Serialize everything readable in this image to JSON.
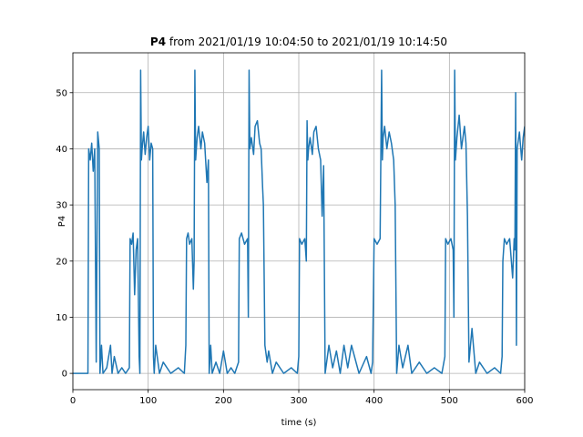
{
  "chart_data": {
    "type": "line",
    "title": {
      "bold": "P4",
      "text": "from 2021/01/19 10:04:50 to 2021/01/19 10:14:50"
    },
    "xlabel": "time (s)",
    "ylabel": "P4",
    "xlim": [
      0,
      600
    ],
    "xticks": [
      0,
      100,
      200,
      300,
      400,
      500,
      600
    ],
    "ylim": [
      -2.9,
      57.1
    ],
    "yticks": [
      0,
      10,
      20,
      30,
      40,
      50
    ],
    "grid": true,
    "series": [
      {
        "color": "#1f77b4",
        "x": [
          0,
          20,
          21,
          23,
          25,
          27,
          29,
          31,
          33,
          35,
          36,
          38,
          40,
          45,
          50,
          52,
          55,
          60,
          65,
          70,
          75,
          76,
          78,
          80,
          82,
          84,
          86,
          88,
          89,
          90,
          91,
          92,
          94,
          96,
          98,
          100,
          102,
          104,
          106,
          107,
          108,
          110,
          115,
          120,
          130,
          140,
          148,
          150,
          151,
          153,
          155,
          158,
          160,
          161,
          162,
          163,
          165,
          167,
          170,
          172,
          175,
          178,
          180,
          181,
          183,
          185,
          190,
          195,
          200,
          205,
          210,
          215,
          220,
          221,
          224,
          228,
          232,
          233,
          234,
          235,
          237,
          240,
          242,
          245,
          248,
          250,
          252,
          253,
          255,
          258,
          260,
          265,
          270,
          280,
          290,
          298,
          300,
          301,
          304,
          308,
          310,
          311,
          312,
          313,
          315,
          318,
          320,
          323,
          326,
          329,
          331,
          333,
          335,
          340,
          345,
          350,
          355,
          360,
          365,
          370,
          380,
          390,
          396,
          398,
          400,
          404,
          408,
          410,
          411,
          412,
          414,
          417,
          420,
          423,
          426,
          428,
          430,
          433,
          438,
          445,
          450,
          460,
          470,
          480,
          490,
          494,
          495,
          498,
          502,
          505,
          506,
          507,
          508,
          510,
          513,
          516,
          520,
          522,
          524,
          526,
          528,
          530,
          535,
          540,
          550,
          560,
          568,
          570,
          571,
          573,
          576,
          580,
          584,
          586,
          587,
          588,
          589,
          590,
          593,
          596,
          598,
          600
        ],
        "values": [
          0,
          0,
          40,
          38,
          41,
          36,
          40,
          2,
          43,
          40,
          0,
          5,
          0,
          1,
          5,
          0,
          3,
          0,
          1,
          0,
          1,
          24,
          23,
          25,
          14,
          22,
          24,
          3,
          0,
          54,
          38,
          40,
          43,
          39,
          42,
          44,
          38,
          41,
          40,
          3,
          0,
          5,
          0,
          2,
          0,
          1,
          0,
          5,
          24,
          25,
          23,
          24,
          15,
          20,
          54,
          38,
          42,
          44,
          40,
          43,
          41,
          34,
          38,
          0,
          5,
          0,
          2,
          0,
          4,
          0,
          1,
          0,
          2,
          24,
          25,
          23,
          24,
          10,
          54,
          40,
          42,
          39,
          44,
          45,
          41,
          40,
          33,
          30,
          5,
          2,
          4,
          0,
          2,
          0,
          1,
          0,
          3,
          24,
          23,
          24,
          20,
          45,
          38,
          40,
          42,
          39,
          43,
          44,
          40,
          38,
          28,
          37,
          0,
          5,
          1,
          4,
          0,
          5,
          1,
          5,
          0,
          3,
          0,
          2,
          24,
          23,
          24,
          54,
          38,
          42,
          44,
          40,
          43,
          41,
          38,
          30,
          0,
          5,
          1,
          5,
          0,
          2,
          0,
          1,
          0,
          3,
          24,
          23,
          24,
          22,
          10,
          54,
          38,
          42,
          46,
          40,
          44,
          41,
          28,
          2,
          5,
          8,
          0,
          2,
          0,
          1,
          0,
          3,
          20,
          24,
          23,
          24,
          17,
          24,
          22,
          50,
          5,
          40,
          43,
          38,
          42,
          44
        ]
      }
    ]
  }
}
